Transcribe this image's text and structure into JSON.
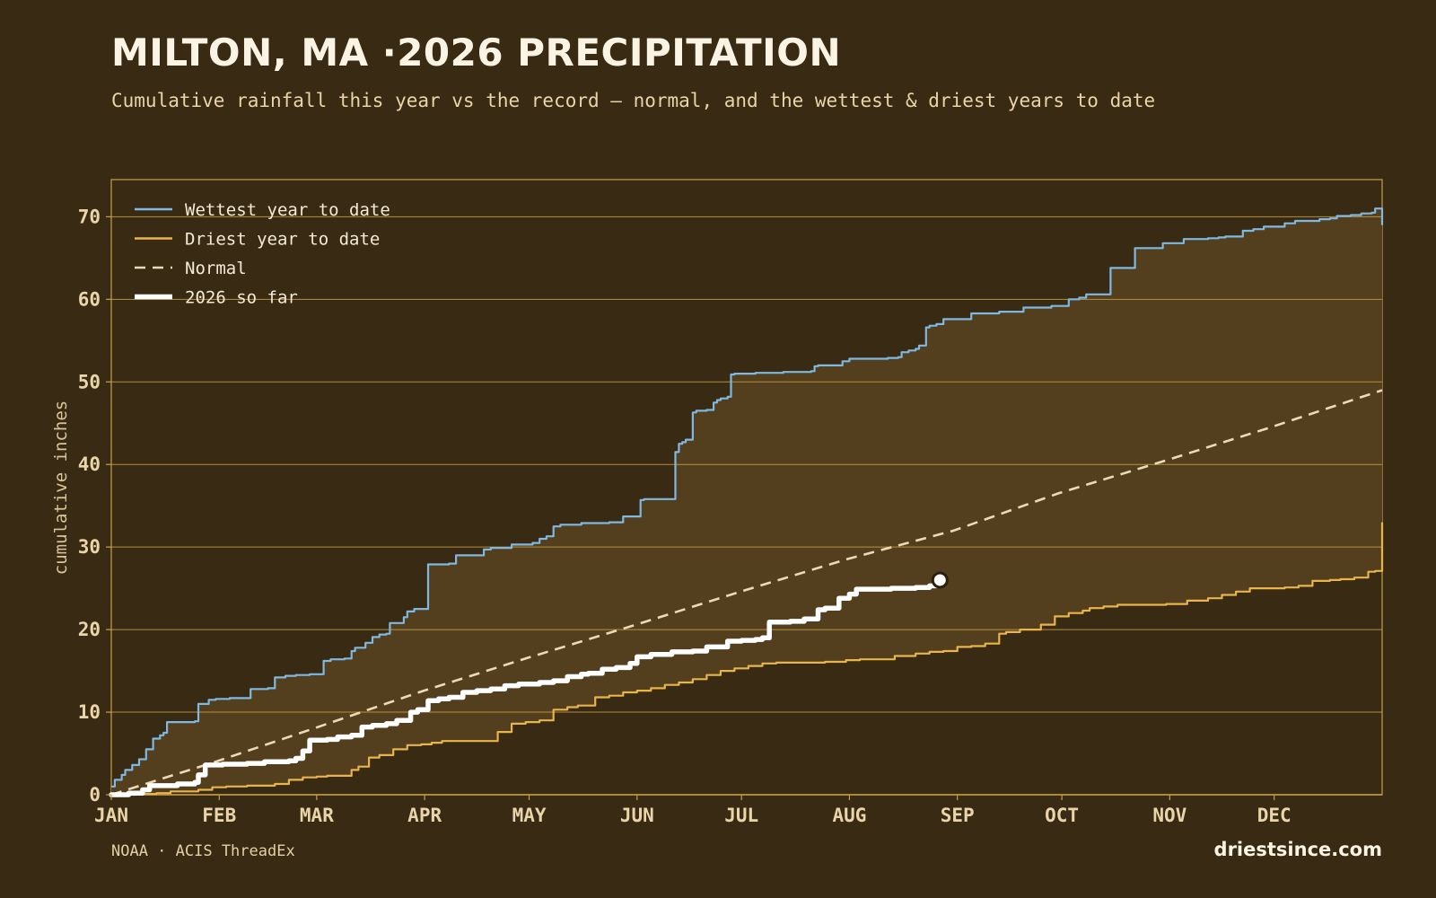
{
  "title": "MILTON, MA ·2026 PRECIPITATION",
  "subtitle": "Cumulative rainfall this year vs the record — normal, and the wettest & driest years to date",
  "source": "NOAA · ACIS ThreadEx",
  "brand": "driestsince.com",
  "colors": {
    "background": "#382a13",
    "band_fill": "#533f1e",
    "grid": "#c8a04a",
    "wettest": "#7fb8e0",
    "driest": "#e8b44c",
    "normal": "#eadbb6",
    "current": "#ffffff"
  },
  "chart_data": {
    "type": "line",
    "title": "MILTON, MA ·2026 PRECIPITATION",
    "xlabel": "",
    "ylabel": "cumulative inches",
    "x_unit": "day of year",
    "xlim": [
      1,
      366
    ],
    "ylim": [
      0,
      74.5
    ],
    "y_ticks": [
      0,
      10,
      20,
      30,
      40,
      50,
      60,
      70
    ],
    "x_ticks": [
      {
        "label": "JAN",
        "day": 1
      },
      {
        "label": "FEB",
        "day": 32
      },
      {
        "label": "MAR",
        "day": 60
      },
      {
        "label": "APR",
        "day": 91
      },
      {
        "label": "MAY",
        "day": 121
      },
      {
        "label": "JUN",
        "day": 152
      },
      {
        "label": "JUL",
        "day": 182
      },
      {
        "label": "AUG",
        "day": 213
      },
      {
        "label": "SEP",
        "day": 244
      },
      {
        "label": "OCT",
        "day": 274
      },
      {
        "label": "NOV",
        "day": 305
      },
      {
        "label": "DEC",
        "day": 335
      }
    ],
    "grid": "horizontal",
    "legend_position": "top-left",
    "series": [
      {
        "name": "Wettest year to date",
        "style": "solid",
        "x": [
          1,
          2,
          4,
          5,
          7,
          9,
          11,
          13,
          15,
          16,
          17,
          19,
          21,
          25,
          26,
          29,
          31,
          35,
          39,
          41,
          43,
          46,
          48,
          51,
          54,
          57,
          58,
          62,
          64,
          66,
          68,
          70,
          71,
          74,
          76,
          78,
          80,
          81,
          85,
          86,
          88,
          89,
          92,
          95,
          98,
          100,
          102,
          108,
          110,
          113,
          116,
          122,
          124,
          126,
          128,
          130,
          136,
          140,
          144,
          145,
          148,
          153,
          154,
          156,
          157,
          163,
          164,
          165,
          166,
          168,
          169,
          170,
          171,
          172,
          174,
          175,
          176,
          178,
          179,
          180,
          186,
          190,
          194,
          196,
          202,
          203,
          204,
          209,
          211,
          213,
          220,
          224,
          226,
          227,
          228,
          230,
          232,
          233,
          235,
          236,
          238,
          240,
          248,
          256,
          258,
          263,
          271,
          276,
          279,
          281,
          288,
          295,
          303,
          309,
          316,
          319,
          321,
          326,
          329,
          332,
          338,
          341,
          348,
          351,
          353,
          357,
          360,
          363,
          364,
          366
        ],
        "y": [
          1.0,
          1.8,
          2.4,
          3.0,
          3.6,
          4.3,
          5.5,
          6.8,
          7.2,
          7.5,
          8.8,
          8.8,
          8.8,
          8.9,
          11.0,
          11.5,
          11.6,
          11.7,
          11.7,
          12.8,
          12.8,
          12.9,
          14.2,
          14.4,
          14.5,
          14.5,
          14.6,
          16.2,
          16.4,
          16.4,
          16.5,
          17.4,
          17.8,
          18.4,
          19.1,
          19.4,
          19.5,
          20.8,
          21.5,
          22.2,
          22.5,
          22.5,
          27.9,
          27.9,
          28.0,
          29.0,
          29.0,
          29.7,
          29.9,
          29.9,
          30.3,
          30.5,
          31.0,
          31.3,
          32.5,
          32.7,
          32.9,
          32.9,
          33.0,
          33.0,
          33.7,
          35.7,
          35.8,
          35.8,
          35.8,
          41.5,
          42.5,
          42.7,
          43.0,
          46.3,
          46.5,
          46.5,
          46.5,
          46.6,
          47.5,
          47.8,
          48.0,
          48.2,
          50.9,
          51.0,
          51.1,
          51.1,
          51.2,
          51.2,
          51.3,
          51.9,
          52.0,
          52.0,
          52.5,
          52.8,
          52.8,
          52.9,
          52.9,
          53.0,
          53.6,
          53.8,
          54.0,
          54.4,
          56.6,
          56.8,
          57.0,
          57.6,
          58.3,
          58.5,
          58.5,
          59.0,
          59.2,
          60.0,
          60.2,
          60.6,
          63.8,
          66.2,
          66.8,
          67.3,
          67.4,
          67.5,
          67.6,
          68.3,
          68.5,
          68.8,
          69.2,
          69.5,
          69.7,
          69.8,
          70.1,
          70.2,
          70.4,
          70.5,
          71.0,
          69.0
        ]
      },
      {
        "name": "Driest year to date",
        "style": "solid",
        "x": [
          1,
          8,
          14,
          18,
          26,
          30,
          34,
          40,
          48,
          52,
          56,
          60,
          63,
          68,
          70,
          72,
          75,
          78,
          82,
          86,
          90,
          93,
          96,
          102,
          106,
          112,
          116,
          120,
          124,
          128,
          132,
          135,
          140,
          144,
          148,
          152,
          156,
          160,
          164,
          168,
          172,
          176,
          180,
          184,
          188,
          192,
          196,
          200,
          206,
          212,
          216,
          220,
          226,
          232,
          236,
          240,
          244,
          248,
          252,
          256,
          258,
          262,
          268,
          272,
          276,
          280,
          282,
          286,
          290,
          296,
          300,
          304,
          310,
          316,
          320,
          324,
          328,
          333,
          338,
          342,
          346,
          351,
          354,
          358,
          362,
          364,
          366
        ],
        "y": [
          0.0,
          0.1,
          0.2,
          0.4,
          0.6,
          0.9,
          1.0,
          1.1,
          1.3,
          1.8,
          2.1,
          2.2,
          2.3,
          2.3,
          3.0,
          3.4,
          4.5,
          4.8,
          5.5,
          6.0,
          6.1,
          6.3,
          6.5,
          6.5,
          6.5,
          7.6,
          8.6,
          8.8,
          9.0,
          10.3,
          10.6,
          10.8,
          11.8,
          12.0,
          12.4,
          12.6,
          12.9,
          13.3,
          13.6,
          14.0,
          14.5,
          15.0,
          15.3,
          15.6,
          15.9,
          16.0,
          16.0,
          16.0,
          16.1,
          16.3,
          16.4,
          16.4,
          16.8,
          17.1,
          17.3,
          17.4,
          17.9,
          18.0,
          18.3,
          19.5,
          19.7,
          20.0,
          20.6,
          21.6,
          22.0,
          22.3,
          22.6,
          22.8,
          23.0,
          23.0,
          23.0,
          23.1,
          23.5,
          23.8,
          24.2,
          24.6,
          25.0,
          25.0,
          25.1,
          25.3,
          25.9,
          26.0,
          26.1,
          26.3,
          27.0,
          27.1,
          33.0
        ]
      },
      {
        "name": "Normal",
        "style": "dashed",
        "x": [
          1,
          31,
          59,
          90,
          120,
          151,
          181,
          212,
          243,
          273,
          304,
          334,
          366
        ],
        "y": [
          0.0,
          4.0,
          8.0,
          12.5,
          16.5,
          20.5,
          24.5,
          28.5,
          32.0,
          36.5,
          40.5,
          44.5,
          49.0
        ]
      },
      {
        "name": "2026 so far",
        "style": "bold",
        "x": [
          1,
          6,
          10,
          12,
          20,
          25,
          26,
          28,
          33,
          40,
          45,
          50,
          52,
          54,
          56,
          58,
          63,
          66,
          70,
          73,
          76,
          80,
          83,
          87,
          89,
          92,
          95,
          98,
          102,
          106,
          110,
          114,
          118,
          124,
          128,
          132,
          136,
          138,
          142,
          146,
          150,
          152,
          156,
          162,
          168,
          172,
          178,
          182,
          186,
          188,
          190,
          196,
          198,
          200,
          204,
          206,
          210,
          213,
          215,
          225,
          232,
          236,
          238,
          239
        ],
        "y": [
          0.0,
          0.2,
          0.6,
          1.1,
          1.3,
          1.5,
          2.4,
          3.6,
          3.7,
          3.8,
          4.0,
          4.0,
          4.1,
          4.4,
          5.3,
          6.6,
          6.7,
          7.0,
          7.2,
          8.2,
          8.4,
          8.6,
          9.0,
          10.0,
          10.3,
          11.4,
          11.6,
          11.8,
          12.4,
          12.6,
          12.8,
          13.2,
          13.4,
          13.6,
          13.8,
          14.3,
          14.6,
          14.7,
          15.2,
          15.4,
          15.9,
          16.7,
          17.0,
          17.3,
          17.4,
          17.9,
          18.6,
          18.7,
          18.8,
          19.0,
          20.9,
          21.0,
          21.0,
          21.3,
          22.4,
          22.6,
          23.8,
          24.3,
          24.9,
          25.0,
          25.1,
          25.3,
          25.6,
          26.0
        ]
      }
    ],
    "legend": [
      {
        "label": "Wettest year to date",
        "key": "wettest"
      },
      {
        "label": "Driest year to date",
        "key": "driest"
      },
      {
        "label": "Normal",
        "key": "normal"
      },
      {
        "label": "2026 so far",
        "key": "current"
      }
    ]
  }
}
